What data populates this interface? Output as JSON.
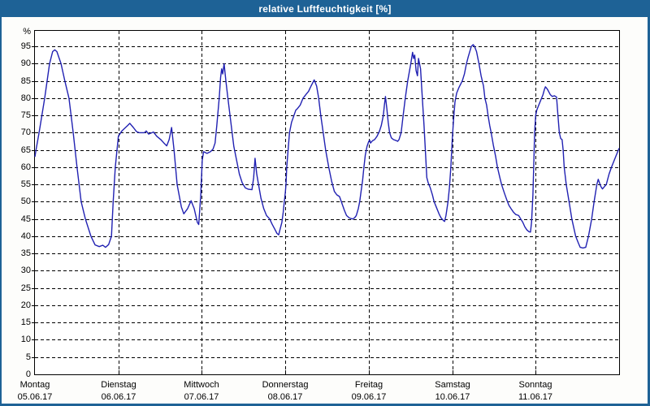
{
  "window": {
    "title": "relative Luftfeuchtigkeit [%]"
  },
  "colors": {
    "frame": "#1e6296",
    "title_text": "#ffffff",
    "plot_background": "#ffffff",
    "plot_border": "#000000",
    "grid": "#000000",
    "line": "#2121b2",
    "label_text": "#000000"
  },
  "chart_data": {
    "type": "line",
    "title": "relative Luftfeuchtigkeit [%]",
    "ylabel": "%",
    "y_unit_label": "%",
    "ylim": [
      0,
      99.5
    ],
    "y_ticks": [
      "0",
      "5",
      "10",
      "15",
      "20",
      "25",
      "30",
      "35",
      "40",
      "45",
      "50",
      "55",
      "60",
      "65",
      "70",
      "75",
      "80",
      "85",
      "90",
      "95"
    ],
    "grid": "dashed",
    "x_hours_total": 168,
    "x_hours_per_day": 24,
    "days": [
      {
        "name": "Montag",
        "date": "05.06.17"
      },
      {
        "name": "Dienstag",
        "date": "06.06.17"
      },
      {
        "name": "Mittwoch",
        "date": "07.06.17"
      },
      {
        "name": "Donnerstag",
        "date": "08.06.17"
      },
      {
        "name": "Freitag",
        "date": "09.06.17"
      },
      {
        "name": "Samstag",
        "date": "10.06.17"
      },
      {
        "name": "Sonntag",
        "date": "11.06.17"
      }
    ],
    "series": [
      {
        "name": "relative Luftfeuchtigkeit",
        "x_unit": "hours since Monday 00:00",
        "points": [
          [
            0,
            63
          ],
          [
            0.3,
            65
          ],
          [
            1.2,
            70
          ],
          [
            2.8,
            80
          ],
          [
            4.2,
            90
          ],
          [
            5.1,
            93.5
          ],
          [
            5.7,
            94
          ],
          [
            6.3,
            93.5
          ],
          [
            7.5,
            90
          ],
          [
            8.6,
            85
          ],
          [
            9.8,
            80
          ],
          [
            11,
            70
          ],
          [
            12.1,
            60
          ],
          [
            13.3,
            50
          ],
          [
            14.5,
            45
          ],
          [
            16.1,
            40
          ],
          [
            17.3,
            37.5
          ],
          [
            18.5,
            37
          ],
          [
            19.5,
            37.4
          ],
          [
            20.3,
            36.8
          ],
          [
            21.2,
            37.6
          ],
          [
            22,
            40
          ],
          [
            22.5,
            50
          ],
          [
            23.1,
            60
          ],
          [
            24,
            69
          ],
          [
            25,
            70.5
          ],
          [
            26.6,
            72
          ],
          [
            27.3,
            72.7
          ],
          [
            28.3,
            71.5
          ],
          [
            29.2,
            70.3
          ],
          [
            30,
            70
          ],
          [
            31.5,
            70
          ],
          [
            32,
            70.5
          ],
          [
            32.7,
            69.6
          ],
          [
            34.1,
            70.2
          ],
          [
            35,
            69
          ],
          [
            36.2,
            68
          ],
          [
            37.1,
            67
          ],
          [
            37.9,
            66.2
          ],
          [
            38.6,
            68
          ],
          [
            39.3,
            71.5
          ],
          [
            40,
            65
          ],
          [
            40.9,
            55
          ],
          [
            42.1,
            48.5
          ],
          [
            42.8,
            46.5
          ],
          [
            43.9,
            48
          ],
          [
            44.9,
            50.3
          ],
          [
            45.8,
            48
          ],
          [
            46.7,
            44
          ],
          [
            47.1,
            43.4
          ],
          [
            47.7,
            52
          ],
          [
            48.1,
            62
          ],
          [
            48.5,
            64.5
          ],
          [
            49.5,
            64
          ],
          [
            50.5,
            64.5
          ],
          [
            51.2,
            65.2
          ],
          [
            51.8,
            67
          ],
          [
            52.3,
            72
          ],
          [
            53,
            80
          ],
          [
            53.4,
            86
          ],
          [
            53.7,
            88.5
          ],
          [
            54,
            87
          ],
          [
            54.4,
            90
          ],
          [
            54.9,
            85
          ],
          [
            55.5,
            80
          ],
          [
            56.1,
            75
          ],
          [
            56.7,
            70
          ],
          [
            57.2,
            66
          ],
          [
            58,
            62
          ],
          [
            58.8,
            58
          ],
          [
            59.6,
            55.5
          ],
          [
            60.5,
            54
          ],
          [
            61.4,
            53.6
          ],
          [
            62.4,
            53.5
          ],
          [
            62.9,
            57
          ],
          [
            63.3,
            62.6
          ],
          [
            63.8,
            58
          ],
          [
            64.3,
            55
          ],
          [
            65,
            51
          ],
          [
            65.8,
            48
          ],
          [
            66.6,
            46
          ],
          [
            67.5,
            45
          ],
          [
            68.2,
            43.5
          ],
          [
            69,
            42
          ],
          [
            69.6,
            40.8
          ],
          [
            70.1,
            40.4
          ],
          [
            70.5,
            42
          ],
          [
            71,
            44
          ],
          [
            71.4,
            47
          ],
          [
            71.7,
            50
          ],
          [
            72,
            52.5
          ],
          [
            72.2,
            55
          ],
          [
            72.4,
            60
          ],
          [
            72.8,
            65
          ],
          [
            73.2,
            70
          ],
          [
            73.8,
            73
          ],
          [
            74.5,
            75
          ],
          [
            75,
            76.5
          ],
          [
            75.5,
            77
          ],
          [
            76.3,
            78
          ],
          [
            77.1,
            80
          ],
          [
            77.9,
            81
          ],
          [
            78.7,
            82
          ],
          [
            79.4,
            83.5
          ],
          [
            80.3,
            85.3
          ],
          [
            81,
            83.5
          ],
          [
            81.6,
            80
          ],
          [
            82.2,
            75
          ],
          [
            82.9,
            70
          ],
          [
            83.6,
            65
          ],
          [
            84.5,
            60
          ],
          [
            85.3,
            56
          ],
          [
            86.1,
            53
          ],
          [
            86.8,
            52
          ],
          [
            87.6,
            51.5
          ],
          [
            88.3,
            49.5
          ],
          [
            89,
            47.5
          ],
          [
            89.6,
            46
          ],
          [
            90.4,
            45.3
          ],
          [
            91.3,
            45
          ],
          [
            91.9,
            45.3
          ],
          [
            92.4,
            46
          ],
          [
            93,
            48
          ],
          [
            93.4,
            50
          ],
          [
            93.8,
            53
          ],
          [
            94.2,
            56
          ],
          [
            94.6,
            60
          ],
          [
            95,
            63.5
          ],
          [
            95.5,
            66
          ],
          [
            96,
            67.5
          ],
          [
            96.3,
            67.8
          ],
          [
            96.5,
            67
          ],
          [
            97.1,
            67.7
          ],
          [
            97.7,
            68
          ],
          [
            98.4,
            69
          ],
          [
            99.1,
            70.5
          ],
          [
            99.6,
            72.1
          ],
          [
            100.2,
            75
          ],
          [
            100.5,
            78
          ],
          [
            100.8,
            80.5
          ],
          [
            101.2,
            77
          ],
          [
            101.6,
            73
          ],
          [
            102,
            70
          ],
          [
            102.5,
            68.5
          ],
          [
            103.1,
            68
          ],
          [
            103.7,
            67.8
          ],
          [
            104.3,
            67.5
          ],
          [
            104.7,
            68
          ],
          [
            105.3,
            70
          ],
          [
            105.9,
            75
          ],
          [
            106.5,
            80
          ],
          [
            107.2,
            85
          ],
          [
            108.1,
            90
          ],
          [
            108.6,
            93.3
          ],
          [
            108.9,
            91.5
          ],
          [
            109.2,
            92.5
          ],
          [
            109.6,
            88
          ],
          [
            110,
            86.5
          ],
          [
            110.3,
            91.5
          ],
          [
            110.9,
            88.5
          ],
          [
            111.4,
            80
          ],
          [
            111.9,
            72
          ],
          [
            112.3,
            64.6
          ],
          [
            112.7,
            57
          ],
          [
            113.1,
            55.5
          ],
          [
            113.7,
            54
          ],
          [
            114.3,
            52
          ],
          [
            114.8,
            50
          ],
          [
            115.4,
            48.5
          ],
          [
            116.2,
            46.5
          ],
          [
            116.8,
            45.3
          ],
          [
            117.5,
            44.5
          ],
          [
            117.8,
            44.3
          ],
          [
            118.2,
            46
          ],
          [
            118.8,
            50
          ],
          [
            119.2,
            54
          ],
          [
            119.6,
            60
          ],
          [
            120,
            68
          ],
          [
            120.4,
            74
          ],
          [
            120.8,
            79
          ],
          [
            121.3,
            81.5
          ],
          [
            121.9,
            83
          ],
          [
            122.9,
            85
          ],
          [
            123.5,
            87
          ],
          [
            124.1,
            90
          ],
          [
            124.6,
            92
          ],
          [
            125.2,
            94
          ],
          [
            125.5,
            95
          ],
          [
            126,
            95.5
          ],
          [
            126.4,
            95
          ],
          [
            127,
            93.5
          ],
          [
            127.4,
            91.5
          ],
          [
            127.7,
            90
          ],
          [
            128.3,
            86.5
          ],
          [
            129,
            83.5
          ],
          [
            129.4,
            80
          ],
          [
            129.9,
            78
          ],
          [
            130.3,
            75
          ],
          [
            130.8,
            72
          ],
          [
            131.2,
            70
          ],
          [
            131.8,
            66.5
          ],
          [
            132.5,
            63
          ],
          [
            133,
            60
          ],
          [
            133.7,
            57
          ],
          [
            134.2,
            55
          ],
          [
            135,
            52.5
          ],
          [
            135.7,
            50.5
          ],
          [
            136.3,
            49
          ],
          [
            136.9,
            48
          ],
          [
            137.6,
            47
          ],
          [
            138.3,
            46.3
          ],
          [
            139.1,
            46
          ],
          [
            139.7,
            45
          ],
          [
            140.3,
            44
          ],
          [
            140.9,
            42.7
          ],
          [
            141.5,
            41.8
          ],
          [
            142.1,
            41.3
          ],
          [
            142.5,
            41.2
          ],
          [
            142.8,
            44
          ],
          [
            143.2,
            52
          ],
          [
            143.5,
            62
          ],
          [
            143.7,
            70
          ],
          [
            144,
            75
          ],
          [
            144.3,
            76.5
          ],
          [
            144.9,
            78
          ],
          [
            145.5,
            79.5
          ],
          [
            146.1,
            81
          ],
          [
            146.5,
            82.5
          ],
          [
            146.8,
            83.3
          ],
          [
            147.3,
            82.7
          ],
          [
            147.7,
            82
          ],
          [
            148.2,
            81
          ],
          [
            148.8,
            80.5
          ],
          [
            149.4,
            80.7
          ],
          [
            150,
            80.3
          ],
          [
            150.4,
            75
          ],
          [
            150.8,
            70
          ],
          [
            151.2,
            68.3
          ],
          [
            151.6,
            68
          ],
          [
            151.9,
            65
          ],
          [
            152.2,
            60
          ],
          [
            152.8,
            55
          ],
          [
            153.6,
            50
          ],
          [
            154.4,
            45
          ],
          [
            155.5,
            40
          ],
          [
            156.3,
            38
          ],
          [
            156.8,
            36.8
          ],
          [
            157.6,
            36.6
          ],
          [
            158.4,
            36.8
          ],
          [
            159.2,
            40
          ],
          [
            160.1,
            45
          ],
          [
            160.8,
            50
          ],
          [
            161.6,
            55
          ],
          [
            162,
            56.5
          ],
          [
            162.7,
            54.5
          ],
          [
            163.2,
            53.7
          ],
          [
            164.3,
            55
          ],
          [
            165.1,
            58
          ],
          [
            165.8,
            60
          ],
          [
            166.6,
            62
          ],
          [
            167.4,
            64
          ],
          [
            168,
            65.5
          ]
        ]
      }
    ]
  }
}
